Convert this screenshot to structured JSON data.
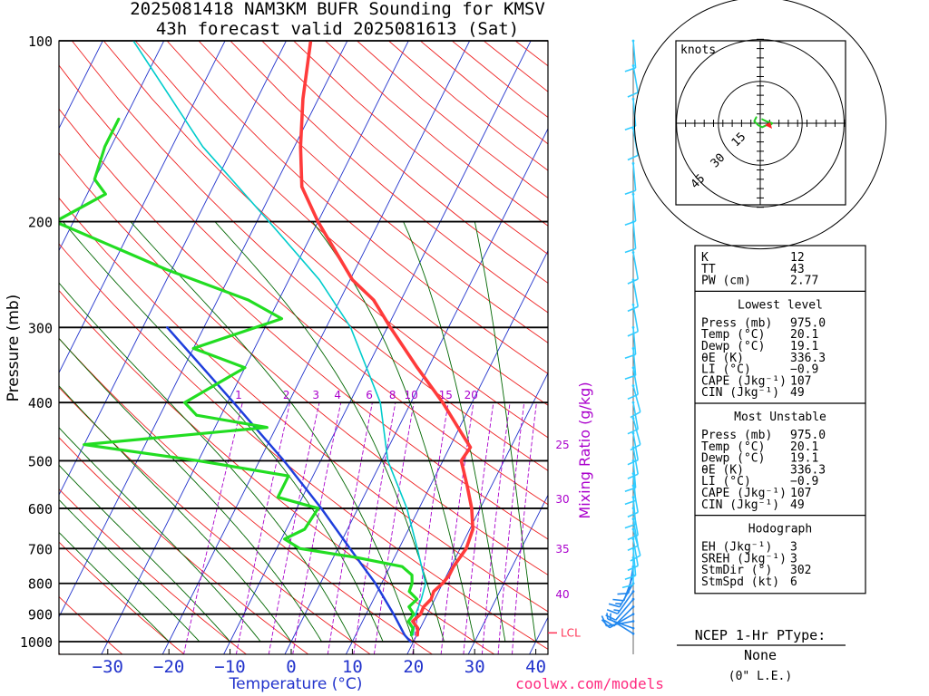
{
  "title": {
    "line1": "2025081418 NAM3KM BUFR Sounding for KMSV",
    "line2": "43h forecast valid 2025081613 (Sat)"
  },
  "credit": "coolwx.com/models",
  "colors": {
    "temp": "#ff3b3b",
    "dewp": "#22dd22",
    "wetbulb": "#00cccc",
    "parcel": "#1f3fdc",
    "isotherm": "#2233cc",
    "dry_adiabat": "#ee2222",
    "moist_adiabat": "#006600",
    "mixing_ratio": "#aa00cc",
    "barb_upper": "#33ccff",
    "barb_lower": "#2288ee"
  },
  "chart_data": {
    "type": "skew-t",
    "xlabel": "Temperature (°C)",
    "ylabel": "Pressure (mb)",
    "right_label": "Mixing Ratio (g/kg)",
    "pressure_ticks": [
      "100",
      "200",
      "300",
      "400",
      "500",
      "600",
      "700",
      "800",
      "900",
      "1000"
    ],
    "temp_ticks": [
      "−30",
      "−20",
      "−10",
      "0",
      "10",
      "20",
      "30",
      "40"
    ],
    "mixing_ratio_labels": [
      "1",
      "2",
      "3",
      "4",
      "6",
      "8",
      "10",
      "15",
      "20",
      "25",
      "30",
      "35",
      "40"
    ],
    "lcl_label": "LCL",
    "temperature_profile": [
      [
        975,
        20.1
      ],
      [
        950,
        19.6
      ],
      [
        925,
        18.2
      ],
      [
        900,
        18.9
      ],
      [
        875,
        18.8
      ],
      [
        850,
        19.4
      ],
      [
        825,
        19.2
      ],
      [
        800,
        20.0
      ],
      [
        775,
        20.4
      ],
      [
        750,
        20.4
      ],
      [
        700,
        21.0
      ],
      [
        650,
        20.5
      ],
      [
        600,
        18.6
      ],
      [
        550,
        16.0
      ],
      [
        500,
        13.0
      ],
      [
        475,
        13.4
      ],
      [
        450,
        10.8
      ],
      [
        400,
        5.2
      ],
      [
        350,
        -1.8
      ],
      [
        300,
        -9.5
      ],
      [
        270,
        -14.5
      ],
      [
        250,
        -19.6
      ],
      [
        200,
        -30.0
      ],
      [
        175,
        -35.5
      ],
      [
        150,
        -39.0
      ],
      [
        125,
        -42.5
      ],
      [
        100,
        -46.0
      ]
    ],
    "dewpoint_profile": [
      [
        975,
        19.1
      ],
      [
        950,
        18.8
      ],
      [
        925,
        17.5
      ],
      [
        900,
        17.8
      ],
      [
        875,
        16.4
      ],
      [
        850,
        17.1
      ],
      [
        825,
        15.2
      ],
      [
        800,
        15.0
      ],
      [
        775,
        14.3
      ],
      [
        750,
        12.0
      ],
      [
        725,
        4.0
      ],
      [
        700,
        -6.2
      ],
      [
        675,
        -9.5
      ],
      [
        650,
        -7.0
      ],
      [
        600,
        -6.5
      ],
      [
        575,
        -14.0
      ],
      [
        530,
        -14.0
      ],
      [
        500,
        -30.0
      ],
      [
        470,
        -50.0
      ],
      [
        440,
        -21.5
      ],
      [
        420,
        -34.0
      ],
      [
        400,
        -37.0
      ],
      [
        350,
        -30.0
      ],
      [
        325,
        -40.0
      ],
      [
        290,
        -28.0
      ],
      [
        270,
        -35.0
      ],
      [
        240,
        -51.0
      ],
      [
        200,
        -73.0
      ],
      [
        180,
        -67.0
      ],
      [
        170,
        -70.0
      ],
      [
        150,
        -71.0
      ],
      [
        135,
        -71.0
      ]
    ],
    "wetbulb_profile": [
      [
        975,
        19.4
      ],
      [
        900,
        18.1
      ],
      [
        850,
        17.8
      ],
      [
        800,
        17.2
      ],
      [
        700,
        13.0
      ],
      [
        600,
        8.0
      ],
      [
        500,
        1.0
      ],
      [
        400,
        -5.0
      ],
      [
        300,
        -16.0
      ],
      [
        250,
        -25.0
      ],
      [
        200,
        -38.0
      ],
      [
        150,
        -55.0
      ],
      [
        100,
        -75.0
      ]
    ],
    "parcel_trace": [
      [
        1000,
        19.5
      ],
      [
        975,
        18.0
      ],
      [
        900,
        14.5
      ],
      [
        800,
        9.0
      ],
      [
        700,
        2.0
      ],
      [
        600,
        -6.0
      ],
      [
        500,
        -16.0
      ],
      [
        400,
        -29.0
      ],
      [
        300,
        -46.0
      ]
    ],
    "wind_barbs": [
      {
        "p": 970,
        "dir": 302,
        "spd": 6
      },
      {
        "p": 950,
        "dir": 290,
        "spd": 8
      },
      {
        "p": 925,
        "dir": 260,
        "spd": 10
      },
      {
        "p": 900,
        "dir": 240,
        "spd": 10
      },
      {
        "p": 875,
        "dir": 225,
        "spd": 12
      },
      {
        "p": 850,
        "dir": 220,
        "spd": 12
      },
      {
        "p": 825,
        "dir": 215,
        "spd": 15
      },
      {
        "p": 800,
        "dir": 210,
        "spd": 15
      },
      {
        "p": 775,
        "dir": 200,
        "spd": 12
      },
      {
        "p": 750,
        "dir": 190,
        "spd": 10
      },
      {
        "p": 725,
        "dir": 180,
        "spd": 10
      },
      {
        "p": 700,
        "dir": 175,
        "spd": 12
      },
      {
        "p": 675,
        "dir": 170,
        "spd": 10
      },
      {
        "p": 650,
        "dir": 165,
        "spd": 10
      },
      {
        "p": 625,
        "dir": 170,
        "spd": 12
      },
      {
        "p": 600,
        "dir": 170,
        "spd": 10
      },
      {
        "p": 575,
        "dir": 175,
        "spd": 10
      },
      {
        "p": 550,
        "dir": 170,
        "spd": 10
      },
      {
        "p": 525,
        "dir": 175,
        "spd": 12
      },
      {
        "p": 500,
        "dir": 175,
        "spd": 10
      },
      {
        "p": 475,
        "dir": 170,
        "spd": 10
      },
      {
        "p": 450,
        "dir": 170,
        "spd": 10
      },
      {
        "p": 425,
        "dir": 165,
        "spd": 10
      },
      {
        "p": 400,
        "dir": 170,
        "spd": 10
      },
      {
        "p": 375,
        "dir": 165,
        "spd": 10
      },
      {
        "p": 350,
        "dir": 170,
        "spd": 10
      },
      {
        "p": 325,
        "dir": 175,
        "spd": 10
      },
      {
        "p": 300,
        "dir": 175,
        "spd": 10
      },
      {
        "p": 275,
        "dir": 170,
        "spd": 10
      },
      {
        "p": 250,
        "dir": 170,
        "spd": 10
      },
      {
        "p": 225,
        "dir": 170,
        "spd": 10
      },
      {
        "p": 200,
        "dir": 175,
        "spd": 10
      },
      {
        "p": 180,
        "dir": 175,
        "spd": 10
      },
      {
        "p": 160,
        "dir": 175,
        "spd": 10
      },
      {
        "p": 140,
        "dir": 170,
        "spd": 10
      },
      {
        "p": 125,
        "dir": 175,
        "spd": 10
      },
      {
        "p": 110,
        "dir": 170,
        "spd": 10
      },
      {
        "p": 100,
        "dir": 175,
        "spd": 10
      }
    ],
    "hodograph": {
      "label": "knots",
      "ring_labels": [
        "15",
        "30",
        "45"
      ],
      "points": [
        [
          -2,
          3
        ],
        [
          -3,
          1
        ],
        [
          -1,
          -1
        ],
        [
          1,
          -2
        ],
        [
          3,
          -1
        ],
        [
          5,
          -1
        ],
        [
          6,
          0
        ],
        [
          3,
          1
        ],
        [
          1,
          2
        ]
      ]
    }
  },
  "indices": {
    "top": [
      {
        "label": "K",
        "value": "12"
      },
      {
        "label": "TT",
        "value": "43"
      },
      {
        "label": "PW (cm)",
        "value": "2.77"
      }
    ],
    "lowest_header": "Lowest level",
    "lowest": [
      {
        "label": "Press (mb)",
        "value": "975.0"
      },
      {
        "label": "Temp (°C)",
        "value": "20.1"
      },
      {
        "label": "Dewp (°C)",
        "value": "19.1"
      },
      {
        "label": "θE (K)",
        "value": "336.3"
      },
      {
        "label": "LI (°C)",
        "value": "−0.9"
      },
      {
        "label": "CAPE (Jkg⁻¹)",
        "value": "107"
      },
      {
        "label": "CIN (Jkg⁻¹)",
        "value": "49"
      }
    ],
    "unstable_header": "Most Unstable",
    "unstable": [
      {
        "label": "Press (mb)",
        "value": "975.0"
      },
      {
        "label": "Temp (°C)",
        "value": "20.1"
      },
      {
        "label": "Dewp (°C)",
        "value": "19.1"
      },
      {
        "label": "θE (K)",
        "value": "336.3"
      },
      {
        "label": "LI (°C)",
        "value": "−0.9"
      },
      {
        "label": "CAPE (Jkg⁻¹)",
        "value": "107"
      },
      {
        "label": "CIN (Jkg⁻¹)",
        "value": "49"
      }
    ],
    "hodo_header": "Hodograph",
    "hodo": [
      {
        "label": "EH (Jkg⁻¹)",
        "value": "3"
      },
      {
        "label": "SREH (Jkg⁻¹)",
        "value": "3"
      },
      {
        "label": "StmDir (°)",
        "value": "302"
      },
      {
        "label": "StmSpd (kt)",
        "value": "6"
      }
    ]
  },
  "ptype": {
    "title": "NCEP 1-Hr PType:",
    "value": "None",
    "note": "(0\" L.E.)"
  }
}
